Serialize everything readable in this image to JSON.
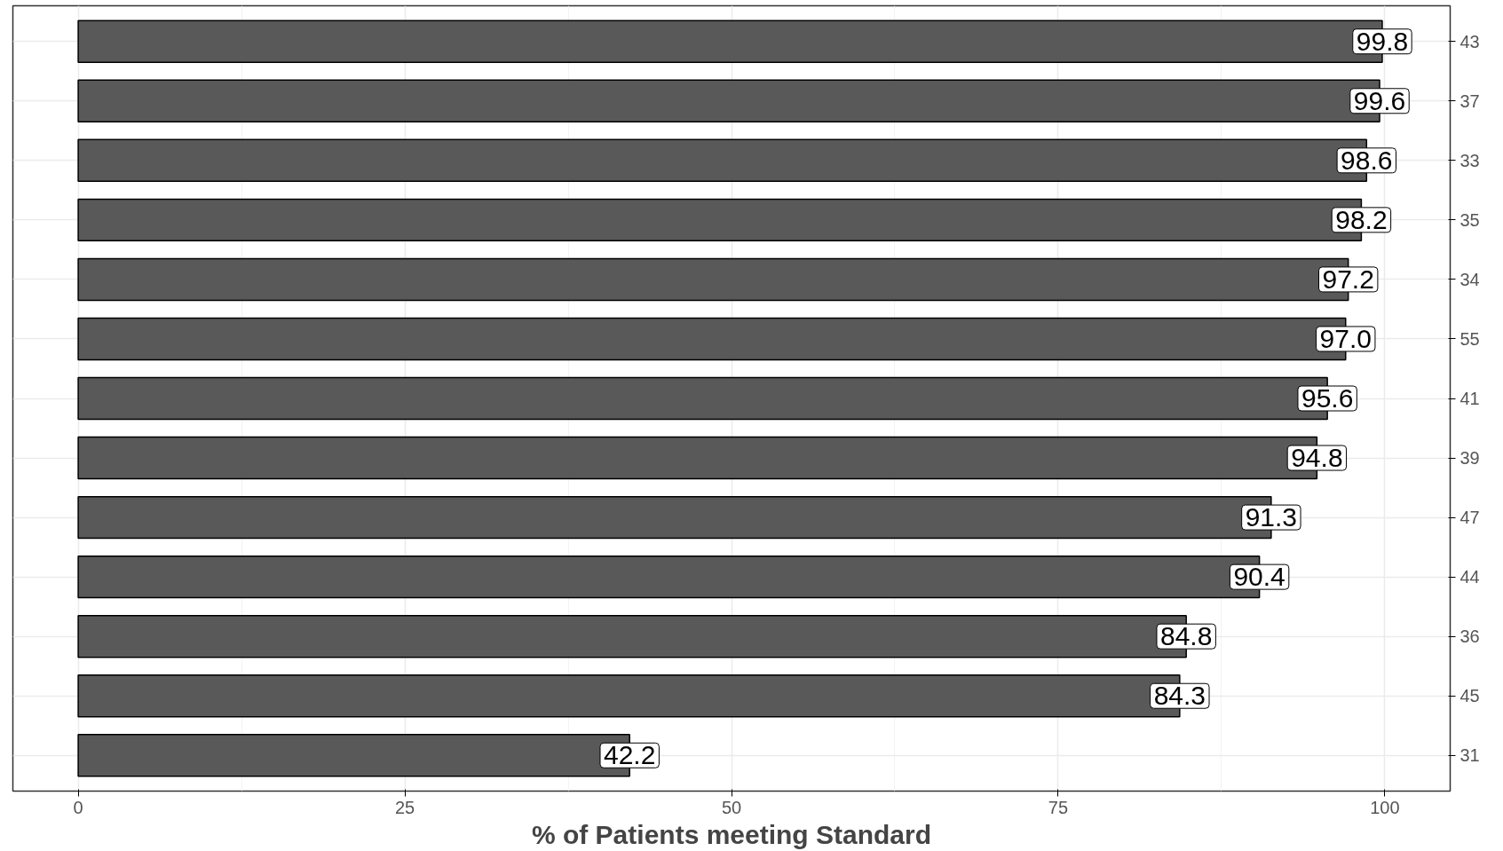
{
  "chart_data": {
    "type": "bar",
    "orientation": "horizontal",
    "xlabel": "% of Patients meeting Standard",
    "categories": [
      "43",
      "37",
      "33",
      "35",
      "34",
      "55",
      "41",
      "39",
      "47",
      "44",
      "36",
      "45",
      "31"
    ],
    "values": [
      99.8,
      99.6,
      98.6,
      98.2,
      97.2,
      97.0,
      95.6,
      94.8,
      91.3,
      90.4,
      84.8,
      84.3,
      42.2
    ],
    "value_labels": [
      "99.8",
      "99.6",
      "98.6",
      "98.2",
      "97.2",
      "97.0",
      "95.6",
      "94.8",
      "91.3",
      "90.4",
      "84.8",
      "84.3",
      "42.2"
    ],
    "color": "#595959",
    "xlim": [
      -5,
      105
    ],
    "xticks": [
      0,
      25,
      50,
      75,
      100
    ],
    "grid": true
  }
}
